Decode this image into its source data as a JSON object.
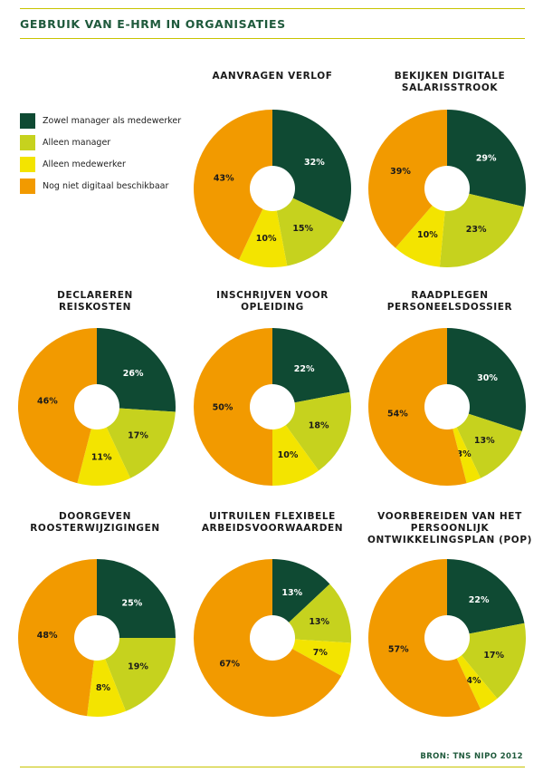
{
  "title": "GEBRUIK VAN E-HRM IN ORGANISATIES",
  "source": "BRON: TNS NIPO 2012",
  "legend": [
    {
      "label": "Zowel manager als medewerker",
      "color": "#0f4a33"
    },
    {
      "label": "Alleen manager",
      "color": "#c6d21e"
    },
    {
      "label": "Alleen medewerker",
      "color": "#f3e400"
    },
    {
      "label": "Nog niet digitaal beschikbaar",
      "color": "#f29a00"
    }
  ],
  "chart_data": [
    {
      "type": "pie",
      "title": "AANVRAGEN VERLOF",
      "categories": [
        "Zowel manager als medewerker",
        "Alleen manager",
        "Alleen medewerker",
        "Nog niet digitaal beschikbaar"
      ],
      "values": [
        32,
        15,
        10,
        43
      ],
      "labels": [
        "32%",
        "15%",
        "10%",
        "43%"
      ]
    },
    {
      "type": "pie",
      "title": "BEKIJKEN DIGITALE\nSALARISSTROOK",
      "categories": [
        "Zowel manager als medewerker",
        "Alleen manager",
        "Alleen medewerker",
        "Nog niet digitaal beschikbaar"
      ],
      "values": [
        29,
        23,
        10,
        39
      ],
      "labels": [
        "29%",
        "23%",
        "10%",
        "39%"
      ]
    },
    {
      "type": "pie",
      "title": "DECLAREREN\nREISKOSTEN",
      "categories": [
        "Zowel manager als medewerker",
        "Alleen manager",
        "Alleen medewerker",
        "Nog niet digitaal beschikbaar"
      ],
      "values": [
        26,
        17,
        11,
        46
      ],
      "labels": [
        "26%",
        "17%",
        "11%",
        "46%"
      ]
    },
    {
      "type": "pie",
      "title": "INSCHRIJVEN VOOR\nOPLEIDING",
      "categories": [
        "Zowel manager als medewerker",
        "Alleen manager",
        "Alleen medewerker",
        "Nog niet digitaal beschikbaar"
      ],
      "values": [
        22,
        18,
        10,
        50
      ],
      "labels": [
        "22%",
        "18%",
        "10%",
        "50%"
      ]
    },
    {
      "type": "pie",
      "title": "RAADPLEGEN\nPERSONEELSDOSSIER",
      "categories": [
        "Zowel manager als medewerker",
        "Alleen manager",
        "Alleen medewerker",
        "Nog niet digitaal beschikbaar"
      ],
      "values": [
        30,
        13,
        3,
        54
      ],
      "labels": [
        "30%",
        "13%",
        "3%",
        "54%"
      ]
    },
    {
      "type": "pie",
      "title": "DOORGEVEN\nROOSTERWIJZIGINGEN",
      "categories": [
        "Zowel manager als medewerker",
        "Alleen manager",
        "Alleen medewerker",
        "Nog niet digitaal beschikbaar"
      ],
      "values": [
        25,
        19,
        8,
        48
      ],
      "labels": [
        "25%",
        "19%",
        "8%",
        "48%"
      ]
    },
    {
      "type": "pie",
      "title": "UITRUILEN FLEXIBELE\nARBEIDSVOORWAARDEN",
      "categories": [
        "Zowel manager als medewerker",
        "Alleen manager",
        "Alleen medewerker",
        "Nog niet digitaal beschikbaar"
      ],
      "values": [
        13,
        13,
        7,
        67
      ],
      "labels": [
        "13%",
        "13%",
        "7%",
        "67%"
      ]
    },
    {
      "type": "pie",
      "title": "VOORBEREIDEN VAN HET\nPERSOONLIJK\nONTWIKKELINGSPLAN (POP)",
      "categories": [
        "Zowel manager als medewerker",
        "Alleen manager",
        "Alleen medewerker",
        "Nog niet digitaal beschikbaar"
      ],
      "values": [
        22,
        17,
        4,
        57
      ],
      "labels": [
        "22%",
        "17%",
        "4%",
        "57%"
      ]
    }
  ]
}
